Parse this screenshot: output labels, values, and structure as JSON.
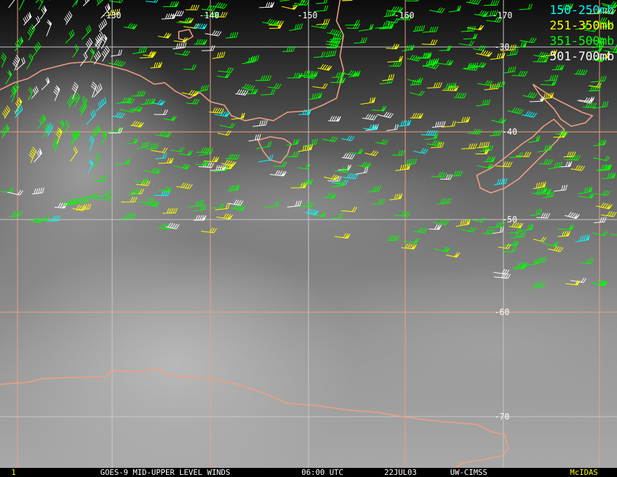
{
  "map": {
    "longitude_labels": [
      "-130",
      "-140",
      "-150",
      "-160",
      "-170"
    ],
    "latitude_labels": [
      "-30",
      "-40",
      "-50",
      "-60",
      "-70"
    ],
    "coastline_color": "#f0a080",
    "grid_color_primary": "#f0a080",
    "grid_color_secondary": "#c8c8c8"
  },
  "legend": [
    {
      "label": "150-250mb",
      "color": "#00ffff"
    },
    {
      "label": "251-350mb",
      "color": "#ffff00"
    },
    {
      "label": "351-500mb",
      "color": "#00ff00"
    },
    {
      "label": "501-700mb",
      "color": "#ffffff"
    }
  ],
  "footer": {
    "frame": "1",
    "title": "GOES-9 MID-UPPER LEVEL WINDS",
    "time": "06:00 UTC",
    "date": "22JUL03",
    "source": "UW-CIMSS",
    "software": "McIDAS"
  }
}
